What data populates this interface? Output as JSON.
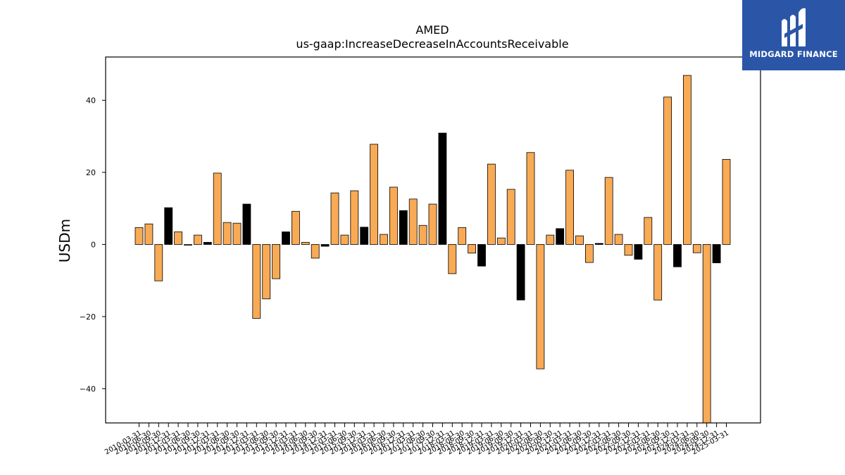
{
  "brand": {
    "name": "MIDGARD FINANCE",
    "logo_color": "#2b56a8"
  },
  "chart_data": {
    "type": "bar",
    "title": "AMED",
    "subtitle": "us-gaap:IncreaseDecreaseInAccountsReceivable",
    "xlabel": "",
    "ylabel": "USDm",
    "ylim": [
      -49.5,
      52
    ],
    "yticks": [
      -40,
      -20,
      0,
      20,
      40
    ],
    "colors": {
      "quarter": "#f8aa55",
      "q4": "#000000",
      "edge": "#000000"
    },
    "grid": false,
    "legend": "none",
    "categories": [
      "2010-03-31",
      "2010-06-30",
      "2010-09-30",
      "2010-12-31",
      "2011-03-31",
      "2011-06-30",
      "2011-09-30",
      "2011-12-31",
      "2012-03-31",
      "2012-06-30",
      "2012-09-30",
      "2012-12-31",
      "2013-03-31",
      "2013-06-30",
      "2013-09-30",
      "2013-12-31",
      "2014-03-31",
      "2014-06-30",
      "2014-09-30",
      "2014-12-31",
      "2015-03-31",
      "2015-06-30",
      "2015-09-30",
      "2015-12-31",
      "2016-03-31",
      "2016-06-30",
      "2016-09-30",
      "2016-12-31",
      "2017-03-31",
      "2017-06-30",
      "2017-09-30",
      "2017-12-31",
      "2018-03-31",
      "2018-06-30",
      "2018-09-30",
      "2018-12-31",
      "2019-03-31",
      "2019-06-30",
      "2019-09-30",
      "2019-12-31",
      "2020-03-31",
      "2020-06-30",
      "2020-09-30",
      "2020-12-31",
      "2021-03-31",
      "2021-06-30",
      "2021-09-30",
      "2021-12-31",
      "2022-03-31",
      "2022-06-30",
      "2022-09-30",
      "2022-12-31",
      "2023-03-31",
      "2023-06-30",
      "2023-09-30",
      "2023-12-31",
      "2024-03-31",
      "2024-06-30",
      "2024-09-30",
      "2024-12-31",
      "2025-03-31"
    ],
    "values": [
      4.7,
      5.7,
      -10.1,
      10.2,
      3.5,
      -0.2,
      2.6,
      0.6,
      19.8,
      6.1,
      5.9,
      11.2,
      -20.5,
      -15.1,
      -9.5,
      3.5,
      9.2,
      0.6,
      -3.8,
      -0.5,
      14.3,
      2.6,
      14.9,
      4.8,
      27.8,
      2.8,
      15.9,
      9.4,
      12.6,
      5.3,
      11.2,
      30.9,
      -8.1,
      4.7,
      -2.4,
      -6.0,
      22.3,
      1.8,
      15.3,
      -15.4,
      25.5,
      -34.5,
      2.6,
      4.4,
      20.6,
      2.4,
      -5.0,
      0.3,
      18.6,
      2.8,
      -3.0,
      -4.1,
      7.5,
      -15.4,
      40.9,
      -6.2,
      46.9,
      -2.3,
      -49.5,
      -5.1,
      23.6
    ]
  }
}
